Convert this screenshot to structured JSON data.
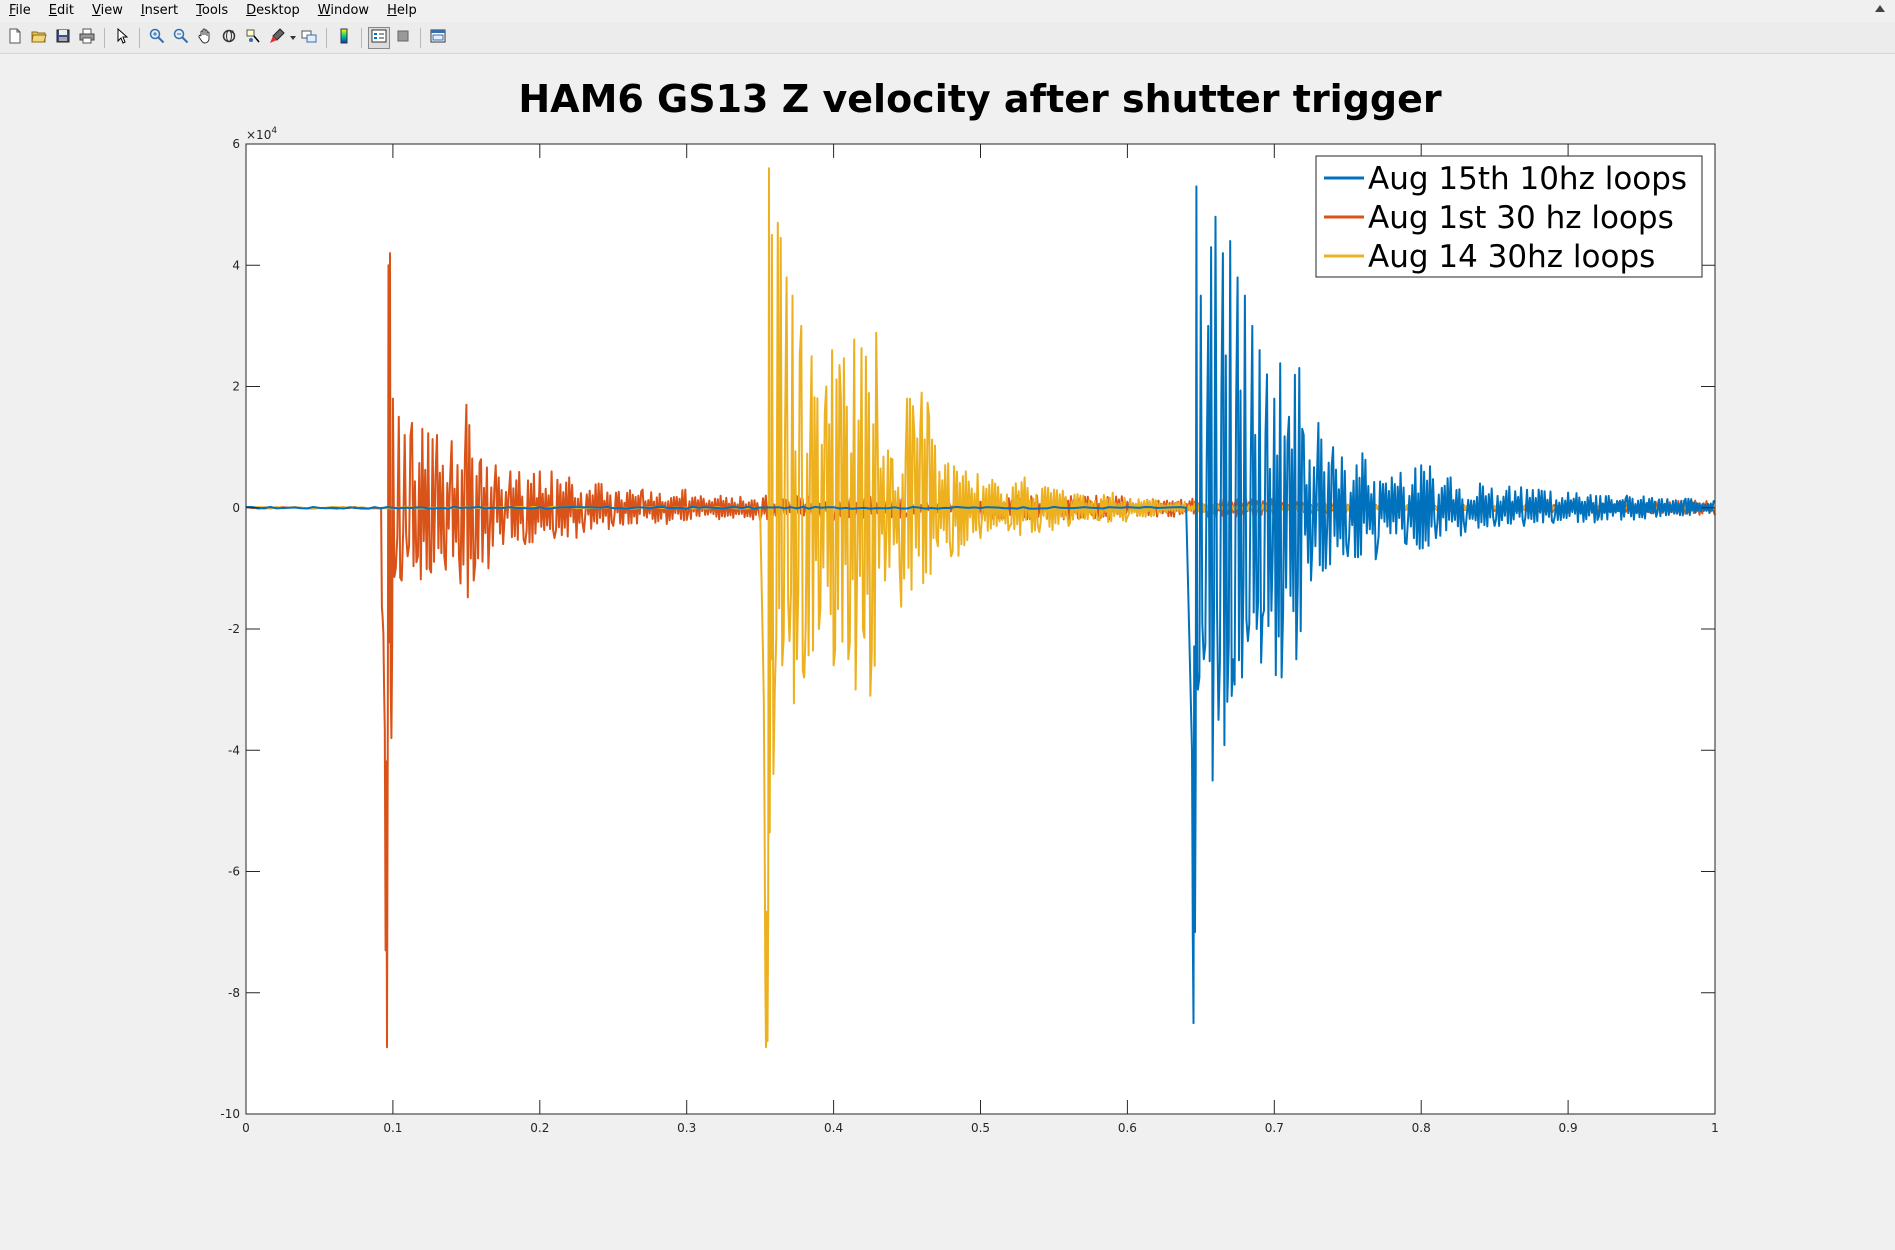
{
  "menu": {
    "items": [
      {
        "mn": "F",
        "rest": "ile"
      },
      {
        "mn": "E",
        "rest": "dit"
      },
      {
        "mn": "V",
        "rest": "iew"
      },
      {
        "mn": "I",
        "rest": "nsert"
      },
      {
        "mn": "T",
        "rest": "ools"
      },
      {
        "mn": "D",
        "rest": "esktop"
      },
      {
        "mn": "W",
        "rest": "indow"
      },
      {
        "mn": "H",
        "rest": "elp"
      }
    ]
  },
  "toolbar": {
    "icons": [
      "new-figure-icon",
      "open-file-icon",
      "save-icon",
      "print-icon",
      "pointer-icon",
      "zoom-in-icon",
      "zoom-out-icon",
      "pan-icon",
      "rotate-3d-icon",
      "data-cursor-icon",
      "brush-icon",
      "link-plot-icon",
      "colorbar-icon",
      "legend-icon",
      "hide-plot-tools-icon",
      "show-plot-tools-icon"
    ]
  },
  "chart_data": {
    "type": "line",
    "title": "HAM6 GS13 Z velocity after shutter trigger",
    "xlabel": "",
    "ylabel": "",
    "xlim": [
      0,
      1
    ],
    "ylim": [
      -100000,
      60000
    ],
    "x_ticks": [
      0,
      0.1,
      0.2,
      0.3,
      0.4,
      0.5,
      0.6,
      0.7,
      0.8,
      0.9,
      1
    ],
    "x_tick_labels": [
      "0",
      "0.1",
      "0.2",
      "0.3",
      "0.4",
      "0.5",
      "0.6",
      "0.7",
      "0.8",
      "0.9",
      "1"
    ],
    "y_ticks": [
      -100000,
      -80000,
      -60000,
      -40000,
      -20000,
      0,
      20000,
      40000,
      60000
    ],
    "y_tick_labels": [
      "-10",
      "-8",
      "-6",
      "-4",
      "-2",
      "0",
      "2",
      "4",
      "6"
    ],
    "y_exponent_base": "×10",
    "y_exponent_power": "4",
    "grid": false,
    "legend_position": "top-right",
    "series": [
      {
        "name": "Aug 15th 10hz loops",
        "color": "#0072bd",
        "trigger_time": 0.642,
        "x": [
          0,
          0.1,
          0.2,
          0.3,
          0.4,
          0.5,
          0.6,
          0.64,
          0.644,
          0.645,
          0.646,
          0.647,
          0.648,
          0.65,
          0.652,
          0.655,
          0.658,
          0.66,
          0.662,
          0.665,
          0.668,
          0.67,
          0.672,
          0.675,
          0.678,
          0.68,
          0.682,
          0.685,
          0.688,
          0.69,
          0.692,
          0.695,
          0.698,
          0.7,
          0.705,
          0.71,
          0.715,
          0.72,
          0.725,
          0.73,
          0.735,
          0.74,
          0.75,
          0.76,
          0.77,
          0.78,
          0.79,
          0.8,
          0.81,
          0.82,
          0.83,
          0.84,
          0.85,
          0.86,
          0.87,
          0.88,
          0.89,
          0.9,
          0.92,
          0.94,
          0.96,
          0.98,
          1.0
        ],
        "y": [
          0,
          0,
          0,
          0,
          0,
          0,
          0,
          0,
          -40000,
          -85000,
          -70000,
          53000,
          -30000,
          35000,
          -25000,
          30000,
          -45000,
          48000,
          -35000,
          42000,
          -32000,
          44000,
          -25000,
          38000,
          -28000,
          35000,
          -22000,
          30000,
          -20000,
          26000,
          -18000,
          22000,
          -17000,
          18000,
          -28000,
          15000,
          -25000,
          12000,
          -12000,
          14000,
          -10000,
          10000,
          -8000,
          9000,
          -7000,
          5000,
          -6000,
          7000,
          -5000,
          5000,
          -4000,
          4000,
          -3000,
          3500,
          -3000,
          3000,
          -2500,
          2500,
          -2000,
          2000,
          -1500,
          1500,
          1000
        ]
      },
      {
        "name": "Aug 1st 30 hz loops",
        "color": "#d95319",
        "trigger_time": 0.092,
        "x": [
          0,
          0.05,
          0.09,
          0.092,
          0.093,
          0.094,
          0.095,
          0.096,
          0.097,
          0.098,
          0.099,
          0.1,
          0.102,
          0.104,
          0.106,
          0.108,
          0.11,
          0.113,
          0.116,
          0.12,
          0.125,
          0.13,
          0.135,
          0.14,
          0.145,
          0.15,
          0.155,
          0.16,
          0.165,
          0.17,
          0.175,
          0.18,
          0.19,
          0.2,
          0.21,
          0.22,
          0.23,
          0.24,
          0.25,
          0.27,
          0.3,
          0.35,
          0.4,
          0.45,
          0.5,
          0.55,
          0.6,
          0.65,
          0.7,
          0.75,
          0.8,
          0.85,
          0.9,
          0.95,
          1.0
        ],
        "y": [
          0,
          0,
          0,
          0,
          -18000,
          -30000,
          -73000,
          -89000,
          40000,
          42000,
          -38000,
          18000,
          -10000,
          15000,
          -12000,
          12000,
          -8000,
          14000,
          -9000,
          13000,
          -10000,
          12000,
          -8000,
          11000,
          -8000,
          17000,
          -12000,
          8000,
          -10000,
          7000,
          -6000,
          6000,
          -6000,
          6000,
          -5000,
          5000,
          -4000,
          4000,
          -3000,
          3000,
          -2000,
          -2000,
          -2000,
          -1000,
          1000,
          2000,
          1000,
          1500,
          1000,
          500,
          -500,
          -500,
          -800,
          -1000,
          -1200
        ]
      },
      {
        "name": "Aug 14 30hz loops",
        "color": "#edb120",
        "trigger_time": 0.352,
        "x": [
          0,
          0.05,
          0.1,
          0.2,
          0.3,
          0.35,
          0.352,
          0.353,
          0.354,
          0.355,
          0.356,
          0.357,
          0.358,
          0.36,
          0.362,
          0.365,
          0.368,
          0.37,
          0.372,
          0.375,
          0.378,
          0.38,
          0.385,
          0.39,
          0.395,
          0.4,
          0.405,
          0.41,
          0.415,
          0.42,
          0.425,
          0.43,
          0.435,
          0.44,
          0.445,
          0.45,
          0.455,
          0.46,
          0.465,
          0.47,
          0.48,
          0.49,
          0.5,
          0.51,
          0.52,
          0.53,
          0.54,
          0.55,
          0.56,
          0.57,
          0.58,
          0.59,
          0.6,
          0.62,
          0.64,
          0.66,
          0.7,
          0.75,
          0.8,
          0.85,
          0.9,
          0.95,
          1.0
        ],
        "y": [
          0,
          0,
          0,
          0,
          0,
          0,
          -25000,
          -52000,
          -89000,
          -88000,
          56000,
          -20000,
          45000,
          -30000,
          47000,
          -26000,
          38000,
          -22000,
          35000,
          -25000,
          30000,
          -28000,
          25000,
          -20000,
          20000,
          -26000,
          18000,
          -25000,
          -30000,
          -20000,
          -31000,
          10000,
          -12000,
          8000,
          -10000,
          18000,
          12000,
          19000,
          15000,
          -5000,
          -8000,
          6000,
          -5000,
          4000,
          -3000,
          5000,
          -4000,
          3000,
          -3000,
          2000,
          -2000,
          2500,
          -1500,
          1000,
          -800,
          500,
          -500,
          400,
          -400,
          300,
          -300,
          200,
          -200
        ]
      }
    ]
  }
}
